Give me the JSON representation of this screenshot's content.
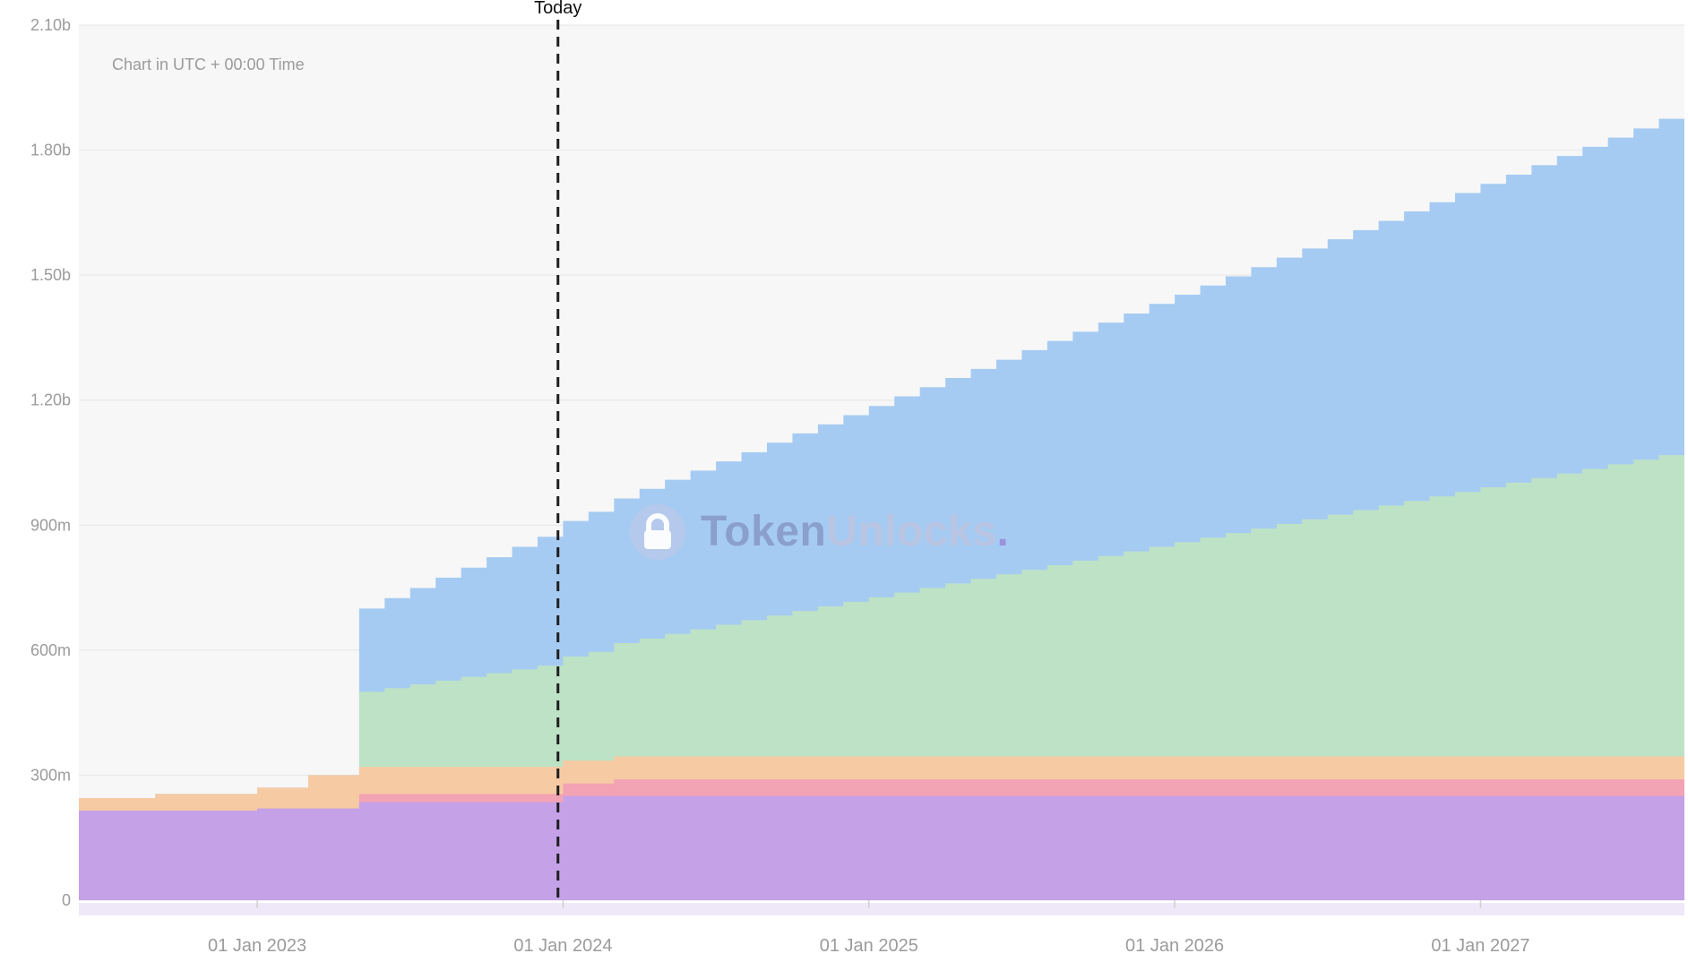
{
  "header_note": "Chart in UTC + 00:00 Time",
  "today_label": "Today",
  "watermark": {
    "token": "Token",
    "unlocks": "Unlocks",
    "dot": "."
  },
  "colors": {
    "plot_bg": "#f7f7f7",
    "grid": "#e6e6e6",
    "axis_text": "#9b9b9b",
    "tick_mark": "#d0d0d0",
    "today_line": "#1f1f1f",
    "range_strip": "#efe8f9"
  },
  "axes": {
    "y_ticks": [
      {
        "label": "0",
        "value": 0
      },
      {
        "label": "300m",
        "value": 300
      },
      {
        "label": "600m",
        "value": 600
      },
      {
        "label": "900m",
        "value": 900
      },
      {
        "label": "1.20b",
        "value": 1200
      },
      {
        "label": "1.50b",
        "value": 1500
      },
      {
        "label": "1.80b",
        "value": 1800
      },
      {
        "label": "2.10b",
        "value": 2100
      }
    ],
    "x_ticks": [
      {
        "label": "01 Jan 2023",
        "month_index": 7
      },
      {
        "label": "01 Jan 2024",
        "month_index": 19
      },
      {
        "label": "01 Jan 2025",
        "month_index": 31
      },
      {
        "label": "01 Jan 2026",
        "month_index": 43
      },
      {
        "label": "01 Jan 2027",
        "month_index": 55
      }
    ]
  },
  "chart_data": {
    "type": "area",
    "stacked": true,
    "step": true,
    "title": "",
    "xlabel": "",
    "ylabel": "",
    "y_unit": "millions of tokens",
    "ylim": [
      0,
      2100
    ],
    "x_start_month": "2022-06",
    "x_interval": "month",
    "x_count": 64,
    "today_month_index": 18.8,
    "legend": "none",
    "grid": "horizontal",
    "series": [
      {
        "name": "unlock-tier-purple",
        "color": "#c5a1e8",
        "values": [
          215,
          215,
          215,
          215,
          215,
          215,
          215,
          220,
          220,
          220,
          220,
          235,
          235,
          235,
          235,
          235,
          235,
          235,
          235,
          250,
          250,
          250,
          250,
          250,
          250,
          250,
          250,
          250,
          250,
          250,
          250,
          250,
          250,
          250,
          250,
          250,
          250,
          250,
          250,
          250,
          250,
          250,
          250,
          250,
          250,
          250,
          250,
          250,
          250,
          250,
          250,
          250,
          250,
          250,
          250,
          250,
          250,
          250,
          250,
          250,
          250,
          250,
          250,
          250
        ]
      },
      {
        "name": "unlock-tier-pink",
        "color": "#f2a3b4",
        "values": [
          0,
          0,
          0,
          0,
          0,
          0,
          0,
          0,
          0,
          0,
          0,
          20,
          20,
          20,
          20,
          20,
          20,
          20,
          20,
          30,
          30,
          40,
          40,
          40,
          40,
          40,
          40,
          40,
          40,
          40,
          40,
          40,
          40,
          40,
          40,
          40,
          40,
          40,
          40,
          40,
          40,
          40,
          40,
          40,
          40,
          40,
          40,
          40,
          40,
          40,
          40,
          40,
          40,
          40,
          40,
          40,
          40,
          40,
          40,
          40,
          40,
          40,
          40,
          40
        ]
      },
      {
        "name": "unlock-tier-orange",
        "color": "#f6cba4",
        "values": [
          30,
          30,
          30,
          40,
          40,
          40,
          40,
          50,
          50,
          80,
          80,
          65,
          65,
          65,
          65,
          65,
          65,
          65,
          65,
          55,
          55,
          55,
          55,
          55,
          55,
          55,
          55,
          55,
          55,
          55,
          55,
          55,
          55,
          55,
          55,
          55,
          55,
          55,
          55,
          55,
          55,
          55,
          55,
          55,
          55,
          55,
          55,
          55,
          55,
          55,
          55,
          55,
          55,
          55,
          55,
          55,
          55,
          55,
          55,
          55,
          55,
          55,
          55,
          55
        ]
      },
      {
        "name": "unlock-tier-green",
        "color": "#bde2c6",
        "values": [
          0,
          0,
          0,
          0,
          0,
          0,
          0,
          0,
          0,
          0,
          0,
          180,
          189,
          198,
          207,
          216,
          225,
          234,
          243,
          250,
          261,
          272,
          283,
          294,
          305,
          316,
          327,
          338,
          349,
          360,
          371,
          382,
          393,
          404,
          415,
          426,
          437,
          448,
          459,
          470,
          481,
          492,
          503,
          514,
          525,
          536,
          547,
          558,
          569,
          580,
          591,
          602,
          613,
          624,
          635,
          646,
          657,
          668,
          679,
          690,
          701,
          712,
          723,
          734
        ]
      },
      {
        "name": "unlock-tier-blue",
        "color": "#a6cbf2",
        "values": [
          0,
          0,
          0,
          0,
          0,
          0,
          0,
          0,
          0,
          0,
          0,
          200,
          216,
          231,
          247,
          262,
          278,
          294,
          309,
          325,
          336,
          347,
          359,
          370,
          381,
          392,
          403,
          415,
          426,
          437,
          448,
          459,
          471,
          482,
          493,
          504,
          515,
          527,
          538,
          549,
          560,
          571,
          583,
          594,
          605,
          616,
          627,
          639,
          650,
          661,
          672,
          683,
          695,
          706,
          717,
          728,
          739,
          751,
          762,
          773,
          784,
          795,
          807,
          818
        ]
      }
    ]
  }
}
